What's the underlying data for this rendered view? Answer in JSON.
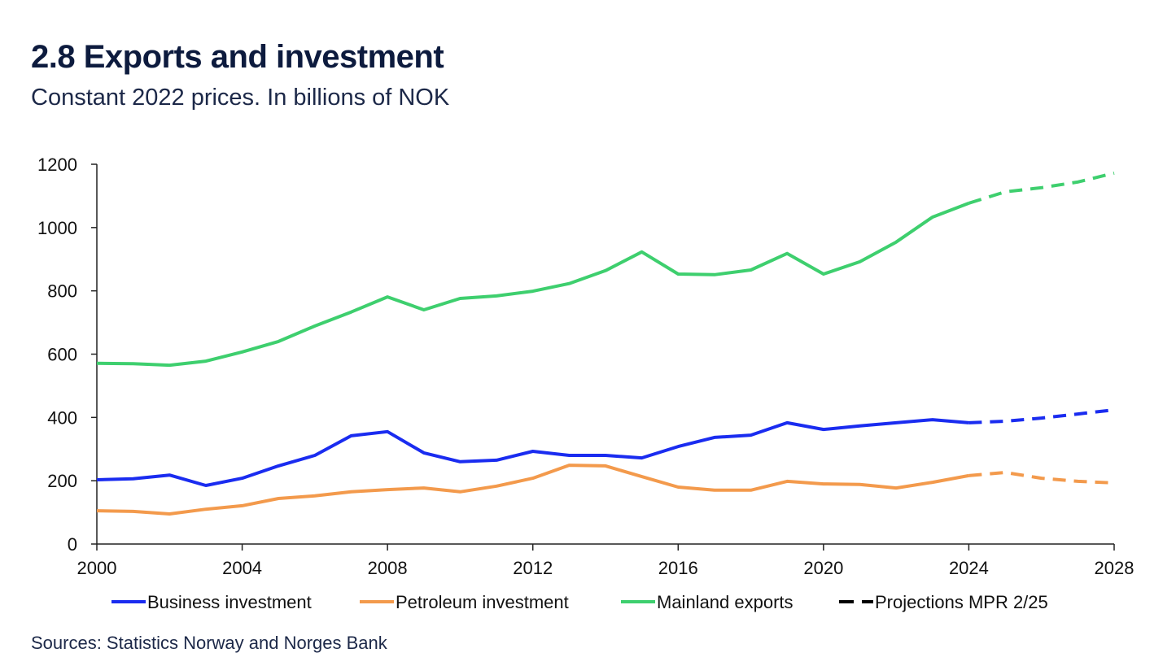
{
  "title": "2.8 Exports and investment",
  "subtitle": "Constant 2022 prices. In billions of NOK",
  "source": "Sources: Statistics Norway and Norges Bank",
  "chart_data": {
    "type": "line",
    "x": [
      2000,
      2001,
      2002,
      2003,
      2004,
      2005,
      2006,
      2007,
      2008,
      2009,
      2010,
      2011,
      2012,
      2013,
      2014,
      2015,
      2016,
      2017,
      2018,
      2019,
      2020,
      2021,
      2022,
      2023,
      2024,
      2025,
      2026,
      2027,
      2028
    ],
    "projection_start": 2024,
    "xlim": [
      2000,
      2028
    ],
    "ylim": [
      0,
      1200
    ],
    "xticks": [
      2000,
      2004,
      2008,
      2012,
      2016,
      2020,
      2024,
      2028
    ],
    "yticks": [
      0,
      200,
      400,
      600,
      800,
      1000,
      1200
    ],
    "series": [
      {
        "name": "Business investment",
        "color": "#1a2cf0",
        "values": [
          203,
          206,
          218,
          185,
          208,
          247,
          280,
          342,
          355,
          288,
          260,
          265,
          293,
          280,
          280,
          272,
          308,
          337,
          344,
          383,
          362,
          373,
          383,
          393,
          383,
          388,
          398,
          411,
          424
        ]
      },
      {
        "name": "Petroleum investment",
        "color": "#f39a4c",
        "values": [
          105,
          103,
          95,
          110,
          121,
          144,
          152,
          165,
          172,
          177,
          165,
          183,
          208,
          249,
          247,
          213,
          180,
          170,
          170,
          198,
          190,
          188,
          177,
          195,
          216,
          226,
          208,
          198,
          193
        ]
      },
      {
        "name": "Mainland exports",
        "color": "#3ecf6e",
        "values": [
          571,
          570,
          565,
          578,
          607,
          640,
          689,
          733,
          781,
          740,
          776,
          784,
          799,
          823,
          864,
          923,
          853,
          851,
          866,
          918,
          853,
          892,
          954,
          1033,
          1077,
          1113,
          1126,
          1144,
          1172
        ]
      }
    ],
    "legend": [
      "Business investment",
      "Petroleum investment",
      "Mainland exports",
      "Projections MPR 2/25"
    ],
    "legend_position": "bottom",
    "grid": false
  }
}
